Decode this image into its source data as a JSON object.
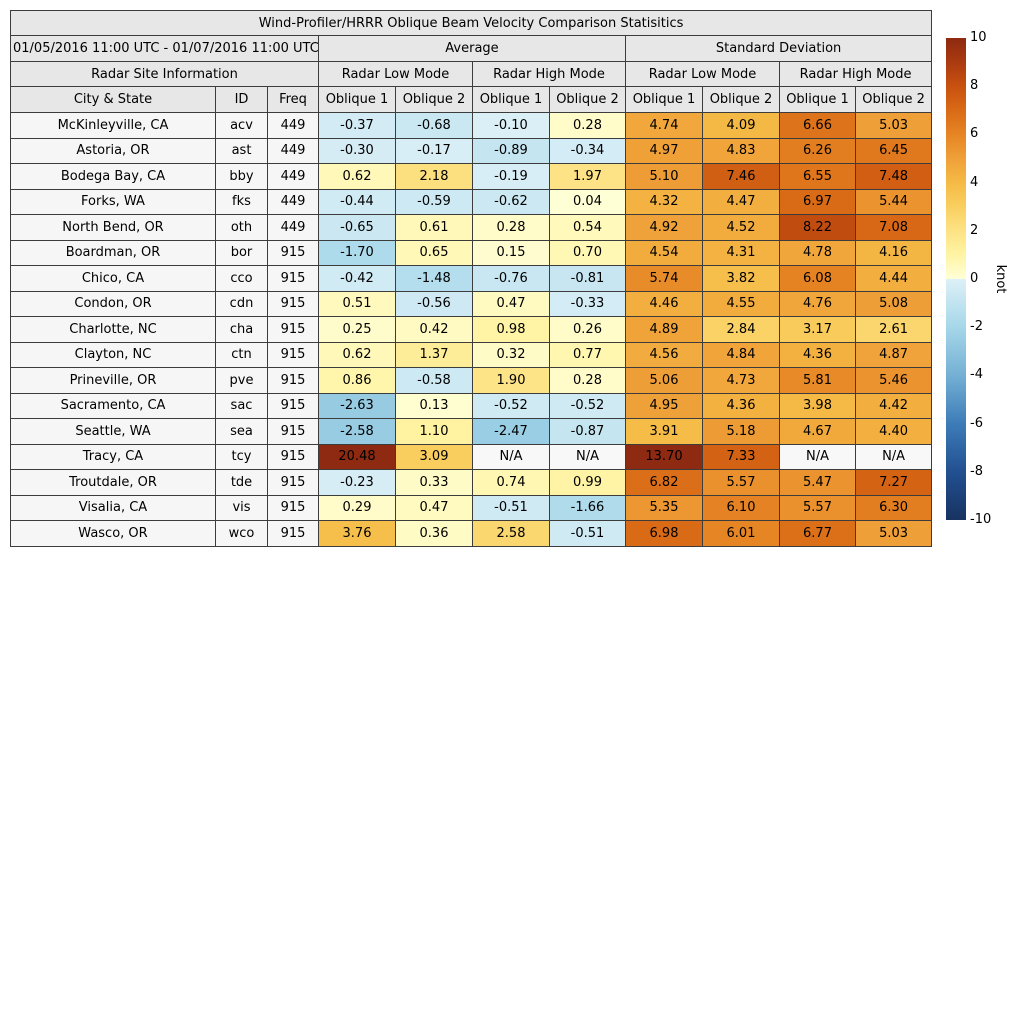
{
  "chart_data": {
    "type": "table",
    "title": "Wind-Profiler/HRRR Oblique Beam Velocity Comparison Statisitics",
    "header": {
      "date_range": "01/05/2016 11:00 UTC - 01/07/2016 11:00 UTC",
      "group_average": "Average",
      "group_std": "Standard Deviation",
      "site_info": "Radar Site Information",
      "mode_low_avg": "Radar Low Mode",
      "mode_high_avg": "Radar High Mode",
      "mode_low_std": "Radar Low Mode",
      "mode_high_std": "Radar High Mode",
      "col_city": "City & State",
      "col_id": "ID",
      "col_freq": "Freq",
      "oblique1": "Oblique 1",
      "oblique2": "Oblique 2"
    },
    "columns": [
      "City & State",
      "ID",
      "Freq",
      "Oblique 1",
      "Oblique 2",
      "Oblique 1",
      "Oblique 2",
      "Oblique 1",
      "Oblique 2",
      "Oblique 1",
      "Oblique 2"
    ],
    "rows": [
      {
        "city": "McKinleyville, CA",
        "id": "acv",
        "freq": "449",
        "values": [
          "-0.37",
          "-0.68",
          "-0.10",
          "0.28",
          "4.74",
          "4.09",
          "6.66",
          "5.03"
        ]
      },
      {
        "city": "Astoria, OR",
        "id": "ast",
        "freq": "449",
        "values": [
          "-0.30",
          "-0.17",
          "-0.89",
          "-0.34",
          "4.97",
          "4.83",
          "6.26",
          "6.45"
        ]
      },
      {
        "city": "Bodega Bay, CA",
        "id": "bby",
        "freq": "449",
        "values": [
          "0.62",
          "2.18",
          "-0.19",
          "1.97",
          "5.10",
          "7.46",
          "6.55",
          "7.48"
        ]
      },
      {
        "city": "Forks, WA",
        "id": "fks",
        "freq": "449",
        "values": [
          "-0.44",
          "-0.59",
          "-0.62",
          "0.04",
          "4.32",
          "4.47",
          "6.97",
          "5.44"
        ]
      },
      {
        "city": "North Bend, OR",
        "id": "oth",
        "freq": "449",
        "values": [
          "-0.65",
          "0.61",
          "0.28",
          "0.54",
          "4.92",
          "4.52",
          "8.22",
          "7.08"
        ]
      },
      {
        "city": "Boardman, OR",
        "id": "bor",
        "freq": "915",
        "values": [
          "-1.70",
          "0.65",
          "0.15",
          "0.70",
          "4.54",
          "4.31",
          "4.78",
          "4.16"
        ]
      },
      {
        "city": "Chico, CA",
        "id": "cco",
        "freq": "915",
        "values": [
          "-0.42",
          "-1.48",
          "-0.76",
          "-0.81",
          "5.74",
          "3.82",
          "6.08",
          "4.44"
        ]
      },
      {
        "city": "Condon, OR",
        "id": "cdn",
        "freq": "915",
        "values": [
          "0.51",
          "-0.56",
          "0.47",
          "-0.33",
          "4.46",
          "4.55",
          "4.76",
          "5.08"
        ]
      },
      {
        "city": "Charlotte, NC",
        "id": "cha",
        "freq": "915",
        "values": [
          "0.25",
          "0.42",
          "0.98",
          "0.26",
          "4.89",
          "2.84",
          "3.17",
          "2.61"
        ]
      },
      {
        "city": "Clayton, NC",
        "id": "ctn",
        "freq": "915",
        "values": [
          "0.62",
          "1.37",
          "0.32",
          "0.77",
          "4.56",
          "4.84",
          "4.36",
          "4.87"
        ]
      },
      {
        "city": "Prineville, OR",
        "id": "pve",
        "freq": "915",
        "values": [
          "0.86",
          "-0.58",
          "1.90",
          "0.28",
          "5.06",
          "4.73",
          "5.81",
          "5.46"
        ]
      },
      {
        "city": "Sacramento, CA",
        "id": "sac",
        "freq": "915",
        "values": [
          "-2.63",
          "0.13",
          "-0.52",
          "-0.52",
          "4.95",
          "4.36",
          "3.98",
          "4.42"
        ]
      },
      {
        "city": "Seattle, WA",
        "id": "sea",
        "freq": "915",
        "values": [
          "-2.58",
          "1.10",
          "-2.47",
          "-0.87",
          "3.91",
          "5.18",
          "4.67",
          "4.40"
        ]
      },
      {
        "city": "Tracy, CA",
        "id": "tcy",
        "freq": "915",
        "values": [
          "20.48",
          "3.09",
          "N/A",
          "N/A",
          "13.70",
          "7.33",
          "N/A",
          "N/A"
        ]
      },
      {
        "city": "Troutdale, OR",
        "id": "tde",
        "freq": "915",
        "values": [
          "-0.23",
          "0.33",
          "0.74",
          "0.99",
          "6.82",
          "5.57",
          "5.47",
          "7.27"
        ]
      },
      {
        "city": "Visalia, CA",
        "id": "vis",
        "freq": "915",
        "values": [
          "0.29",
          "0.47",
          "-0.51",
          "-1.66",
          "5.35",
          "6.10",
          "5.57",
          "6.30"
        ]
      },
      {
        "city": "Wasco, OR",
        "id": "wco",
        "freq": "915",
        "values": [
          "3.76",
          "0.36",
          "2.58",
          "-0.51",
          "6.98",
          "6.01",
          "6.77",
          "5.03"
        ]
      }
    ],
    "colorbar": {
      "label": "knot",
      "vmin": -10,
      "vmax": 10,
      "ticks": [
        "10",
        "8",
        "6",
        "4",
        "2",
        "0",
        "-2",
        "-4",
        "-6",
        "-8",
        "-10"
      ],
      "stops_positive": [
        [
          0,
          "#ffffd8"
        ],
        [
          1,
          "#fff4a4"
        ],
        [
          2,
          "#fde284"
        ],
        [
          3,
          "#f9cf60"
        ],
        [
          4,
          "#f5ba45"
        ],
        [
          5,
          "#efa038"
        ],
        [
          6,
          "#e68524"
        ],
        [
          7,
          "#d96a16"
        ],
        [
          8,
          "#c85110"
        ],
        [
          9,
          "#aa3a10"
        ],
        [
          10,
          "#8e2a11"
        ]
      ],
      "stops_negative": [
        [
          0,
          "#ddf0f7"
        ],
        [
          -2,
          "#a6d7e9"
        ],
        [
          -4,
          "#74b0d4"
        ],
        [
          -6,
          "#3d7cb8"
        ],
        [
          -8,
          "#225091"
        ],
        [
          -10,
          "#173361"
        ]
      ],
      "na_color": "#f8f8f8"
    },
    "styles": {
      "header_bg": "#e7e7e7",
      "label_cell_bg": "#f6f6f6",
      "border_color": "#3c3c3c"
    }
  }
}
